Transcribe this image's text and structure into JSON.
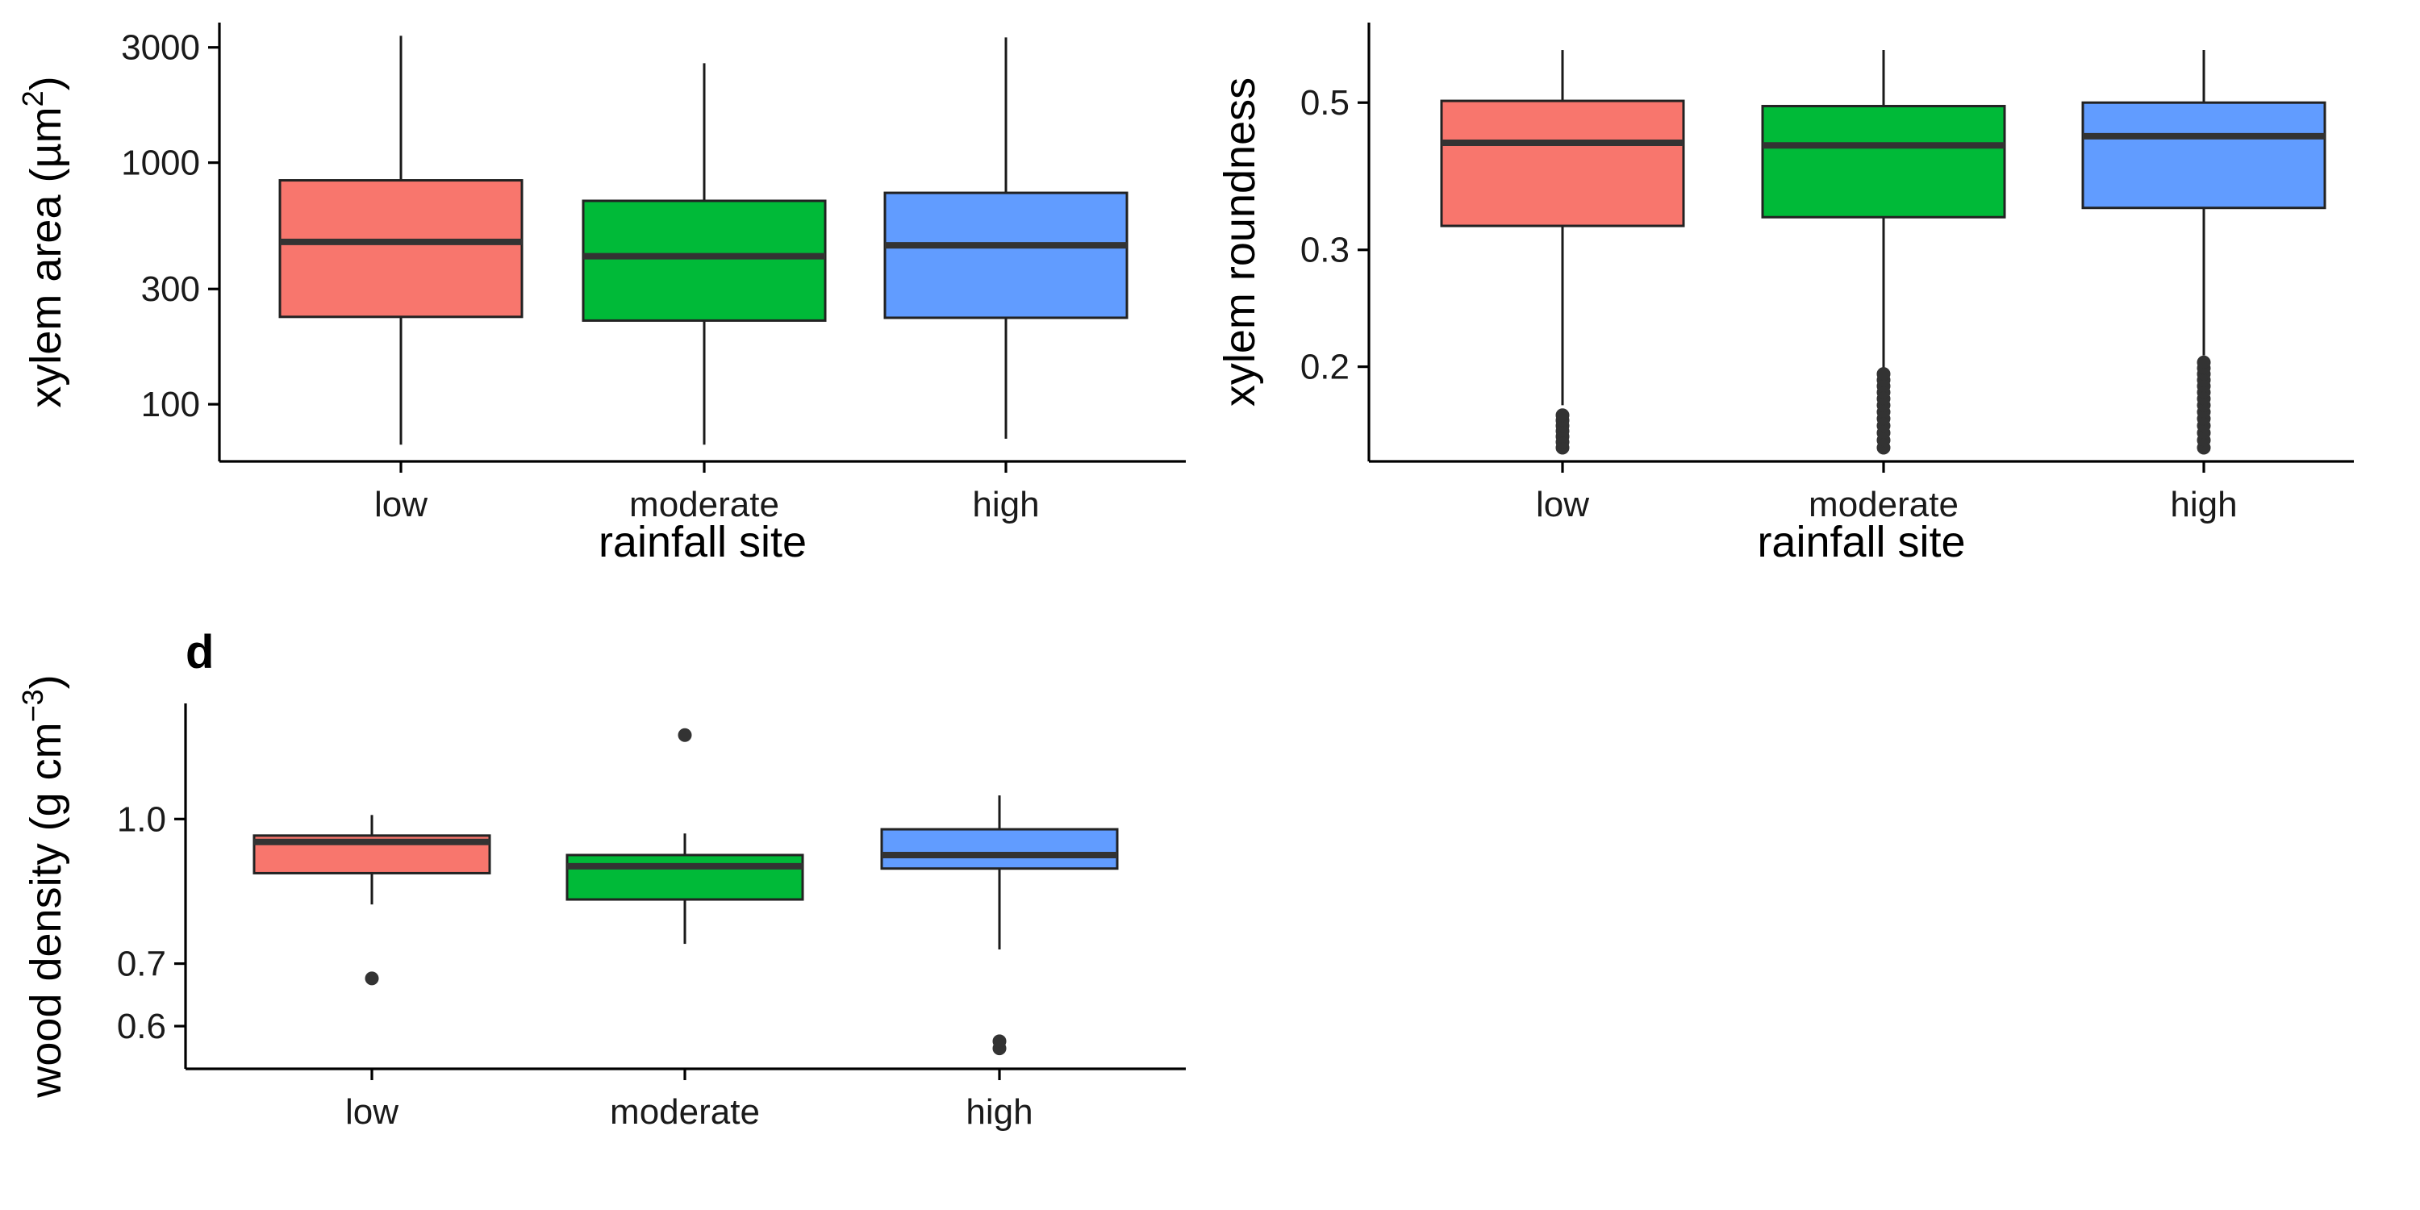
{
  "chart_data": [
    {
      "id": "a",
      "type": "box",
      "ylabel": "xylem area (µm²)",
      "ylabel_parts": {
        "pre": "xylem area (µm",
        "sup": "2",
        "post": ")"
      },
      "xlabel": "rainfall site",
      "y_scale": "log",
      "ylim": [
        58,
        3800
      ],
      "y_ticks": [
        100,
        300,
        1000,
        3000
      ],
      "y_tick_labels": [
        "100",
        "300",
        "1000",
        "3000"
      ],
      "categories": [
        "low",
        "moderate",
        "high"
      ],
      "colors": [
        "#F8766D",
        "#00BA38",
        "#619CFF"
      ],
      "boxes": [
        {
          "category": "low",
          "whisker_low": 68,
          "q1": 230,
          "median": 470,
          "q3": 845,
          "whisker_high": 3350,
          "outliers": []
        },
        {
          "category": "moderate",
          "whisker_low": 68,
          "q1": 222,
          "median": 410,
          "q3": 695,
          "whisker_high": 2580,
          "outliers": []
        },
        {
          "category": "high",
          "whisker_low": 72,
          "q1": 228,
          "median": 455,
          "q3": 750,
          "whisker_high": 3300,
          "outliers": []
        }
      ]
    },
    {
      "id": "b",
      "type": "box",
      "ylabel": "xylem roundness",
      "xlabel": "rainfall site",
      "y_scale": "log",
      "ylim": [
        0.144,
        0.66
      ],
      "y_ticks": [
        0.2,
        0.3,
        0.5
      ],
      "y_tick_labels": [
        "0.2",
        "0.3",
        "0.5"
      ],
      "categories": [
        "low",
        "moderate",
        "high"
      ],
      "colors": [
        "#F8766D",
        "#00BA38",
        "#619CFF"
      ],
      "boxes": [
        {
          "category": "low",
          "whisker_low": 0.175,
          "q1": 0.326,
          "median": 0.435,
          "q3": 0.503,
          "whisker_high": 0.6,
          "outliers": [
            0.151,
            0.154,
            0.157,
            0.16,
            0.163,
            0.166,
            0.169
          ]
        },
        {
          "category": "moderate",
          "whisker_low": 0.198,
          "q1": 0.336,
          "median": 0.431,
          "q3": 0.494,
          "whisker_high": 0.6,
          "outliers": [
            0.151,
            0.155,
            0.159,
            0.163,
            0.167,
            0.171,
            0.175,
            0.179,
            0.183,
            0.187,
            0.191,
            0.195
          ]
        },
        {
          "category": "high",
          "whisker_low": 0.208,
          "q1": 0.347,
          "median": 0.445,
          "q3": 0.5,
          "whisker_high": 0.6,
          "outliers": [
            0.151,
            0.155,
            0.159,
            0.163,
            0.167,
            0.171,
            0.175,
            0.179,
            0.183,
            0.187,
            0.191,
            0.195,
            0.199,
            0.203
          ]
        }
      ]
    },
    {
      "id": "d",
      "type": "box",
      "panel_tag": "d",
      "ylabel": "wood density (g cm⁻³)",
      "ylabel_parts": {
        "pre": "wood density (g cm",
        "sup": "−3",
        "post": ")"
      },
      "xlabel": "",
      "y_scale": "log",
      "ylim": [
        0.54,
        1.33
      ],
      "y_ticks": [
        0.6,
        0.7,
        1.0
      ],
      "y_tick_labels": [
        "0.6",
        "0.7",
        "1.0"
      ],
      "categories": [
        "low",
        "moderate",
        "high"
      ],
      "colors": [
        "#F8766D",
        "#00BA38",
        "#619CFF"
      ],
      "boxes": [
        {
          "category": "low",
          "whisker_low": 0.81,
          "q1": 0.875,
          "median": 0.945,
          "q3": 0.96,
          "whisker_high": 1.01,
          "outliers": [
            0.675
          ]
        },
        {
          "category": "moderate",
          "whisker_low": 0.735,
          "q1": 0.82,
          "median": 0.89,
          "q3": 0.915,
          "whisker_high": 0.965,
          "outliers": [
            1.23
          ]
        },
        {
          "category": "high",
          "whisker_low": 0.725,
          "q1": 0.885,
          "median": 0.915,
          "q3": 0.975,
          "whisker_high": 1.06,
          "outliers": [
            0.568,
            0.578
          ]
        }
      ]
    }
  ]
}
